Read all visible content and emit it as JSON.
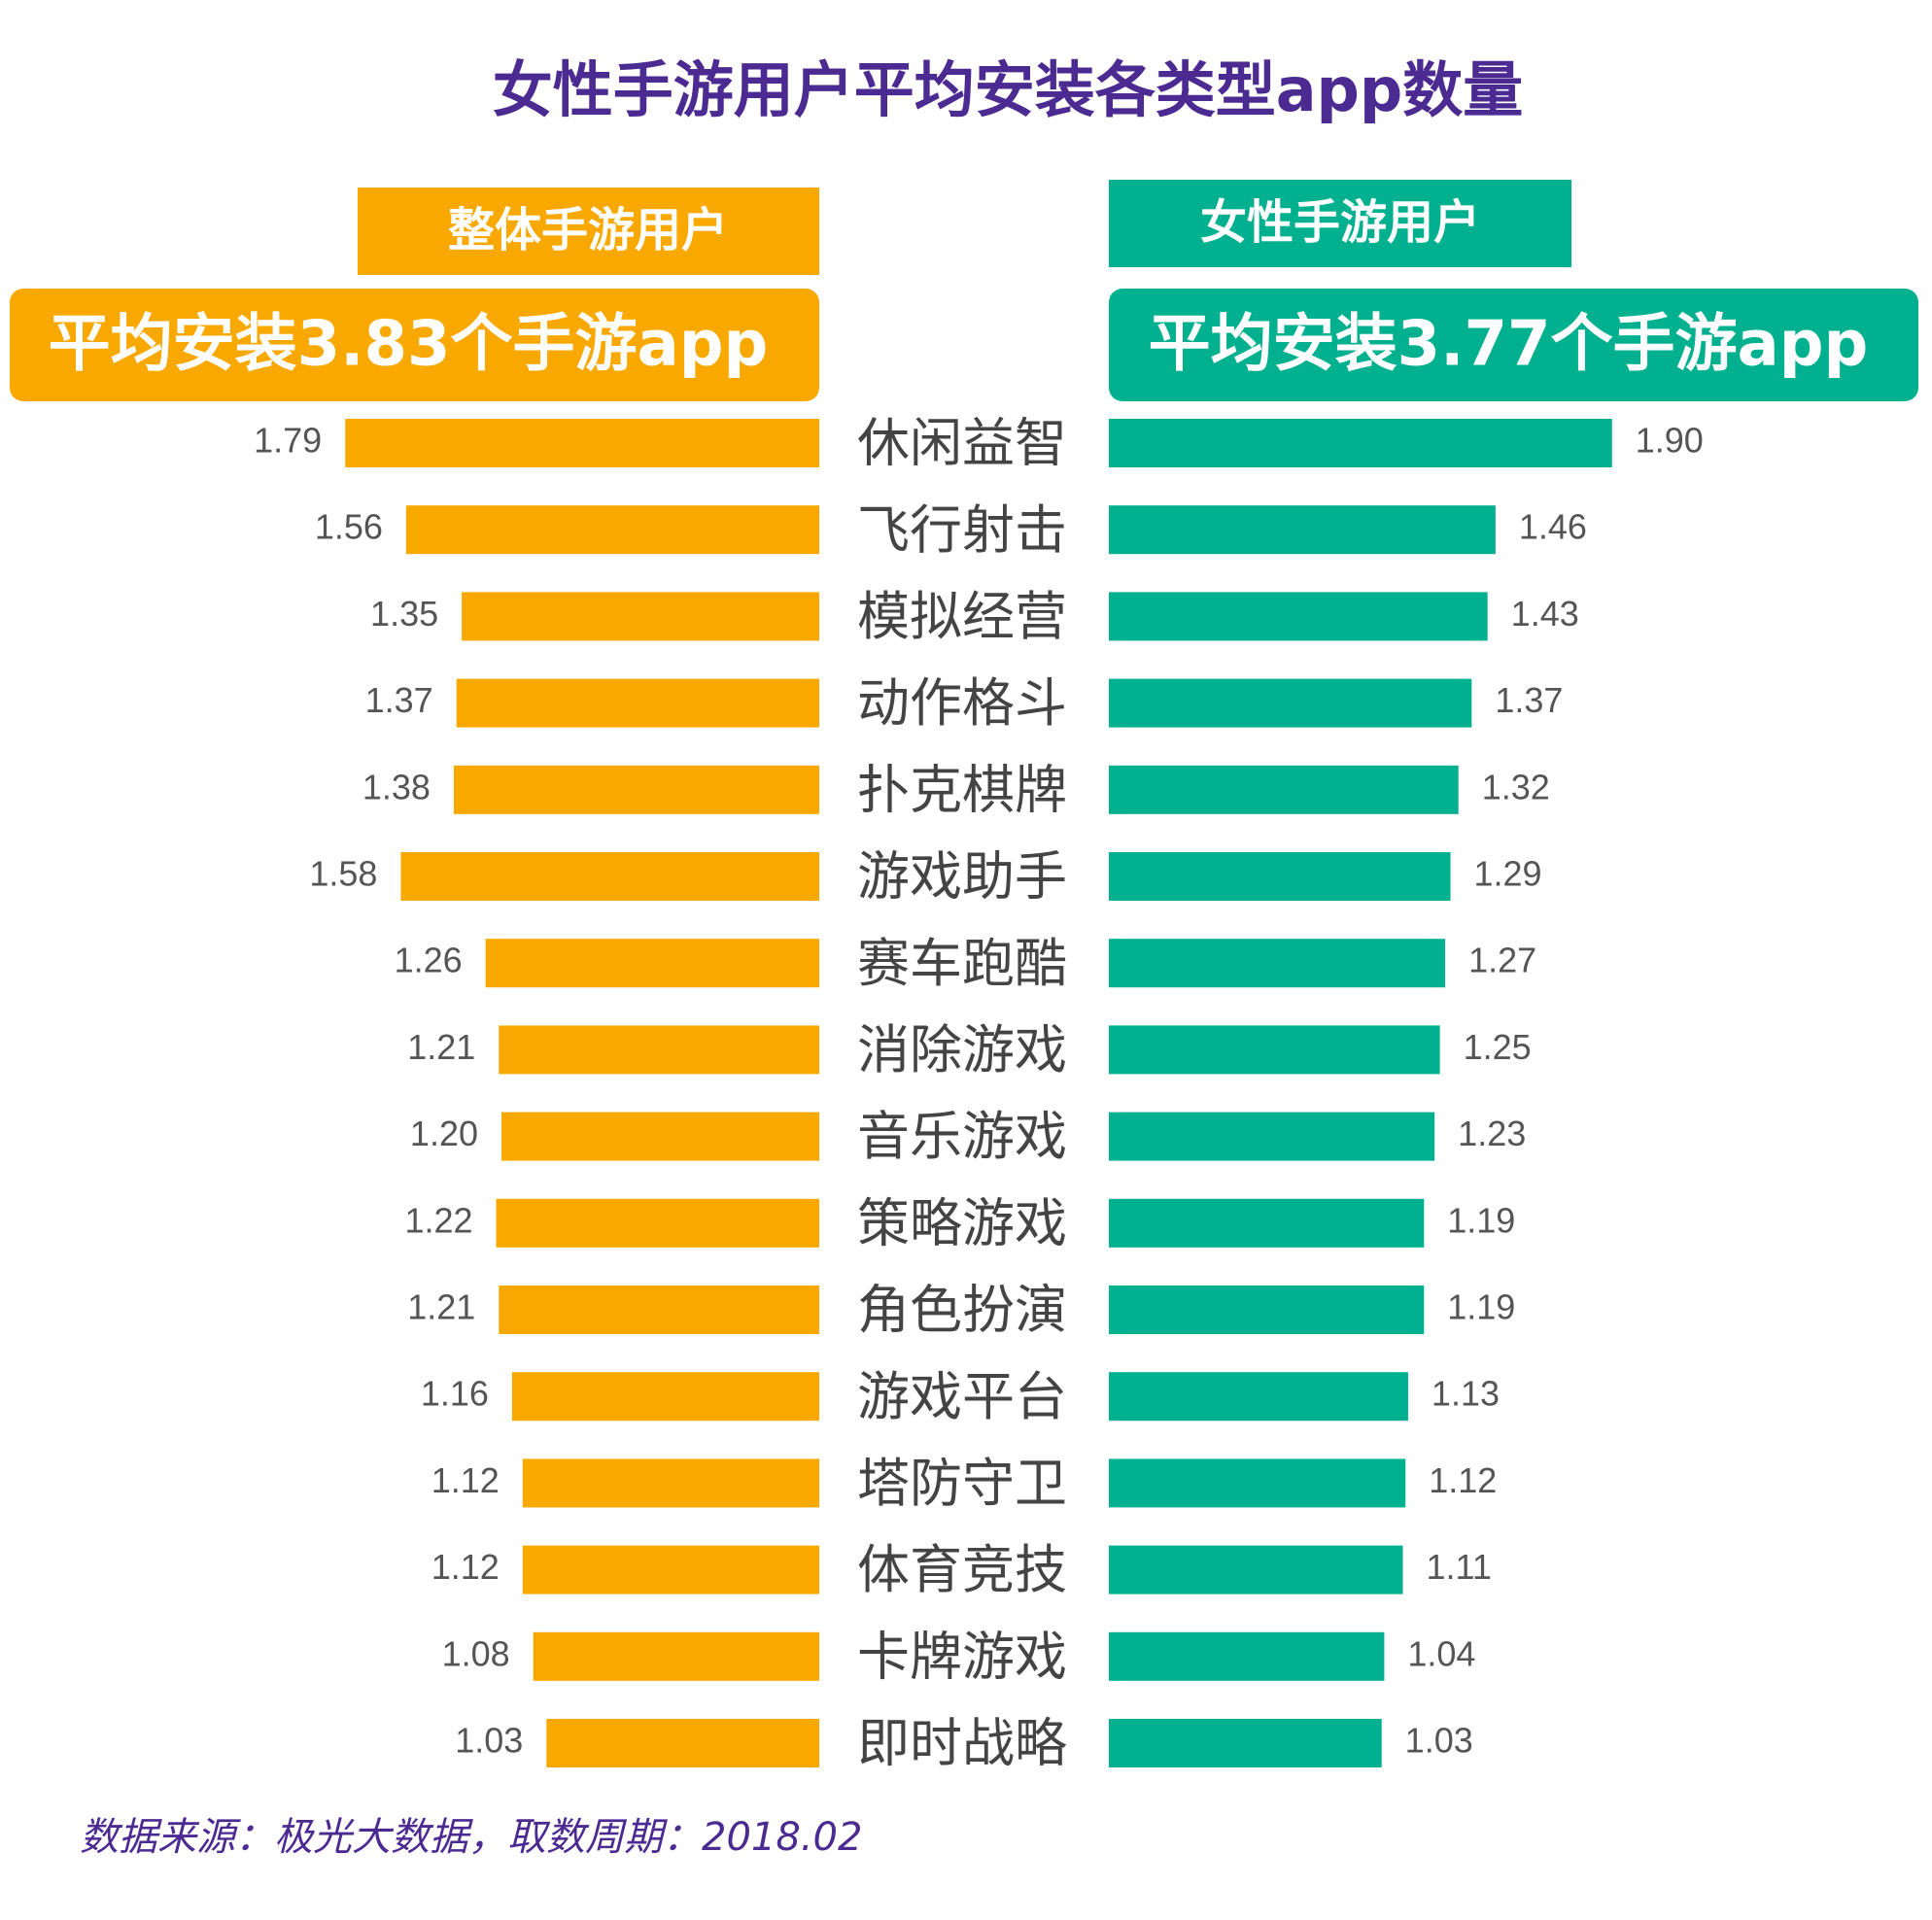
{
  "chart_data": {
    "type": "bar",
    "title": "女性手游用户平均安装各类型app数量",
    "categories": [
      "休闲益智",
      "飞行射击",
      "模拟经营",
      "动作格斗",
      "扑克棋牌",
      "游戏助手",
      "赛车跑酷",
      "消除游戏",
      "音乐游戏",
      "策略游戏",
      "角色扮演",
      "游戏平台",
      "塔防守卫",
      "体育竞技",
      "卡牌游戏",
      "即时战略"
    ],
    "series": [
      {
        "name": "整体手游用户",
        "subtitle": "平均安装3.83个手游app",
        "color": "#f9a800",
        "values": [
          1.79,
          1.56,
          1.35,
          1.37,
          1.38,
          1.58,
          1.26,
          1.21,
          1.2,
          1.22,
          1.21,
          1.16,
          1.12,
          1.12,
          1.08,
          1.03
        ],
        "value_labels": [
          "1.79",
          "1.56",
          "1.35",
          "1.37",
          "1.38",
          "1.58",
          "1.26",
          "1.21",
          "1.20",
          "1.22",
          "1.21",
          "1.16",
          "1.12",
          "1.12",
          "1.08",
          "1.03"
        ]
      },
      {
        "name": "女性手游用户",
        "subtitle": "平均安装3.77个手游app",
        "color": "#00b08f",
        "values": [
          1.9,
          1.46,
          1.43,
          1.37,
          1.32,
          1.29,
          1.27,
          1.25,
          1.23,
          1.19,
          1.19,
          1.13,
          1.12,
          1.11,
          1.04,
          1.03
        ],
        "value_labels": [
          "1.90",
          "1.46",
          "1.43",
          "1.37",
          "1.32",
          "1.29",
          "1.27",
          "1.25",
          "1.23",
          "1.19",
          "1.19",
          "1.13",
          "1.12",
          "1.11",
          "1.04",
          "1.03"
        ]
      }
    ],
    "source": "数据来源：极光大数据，取数周期：2018.02"
  }
}
